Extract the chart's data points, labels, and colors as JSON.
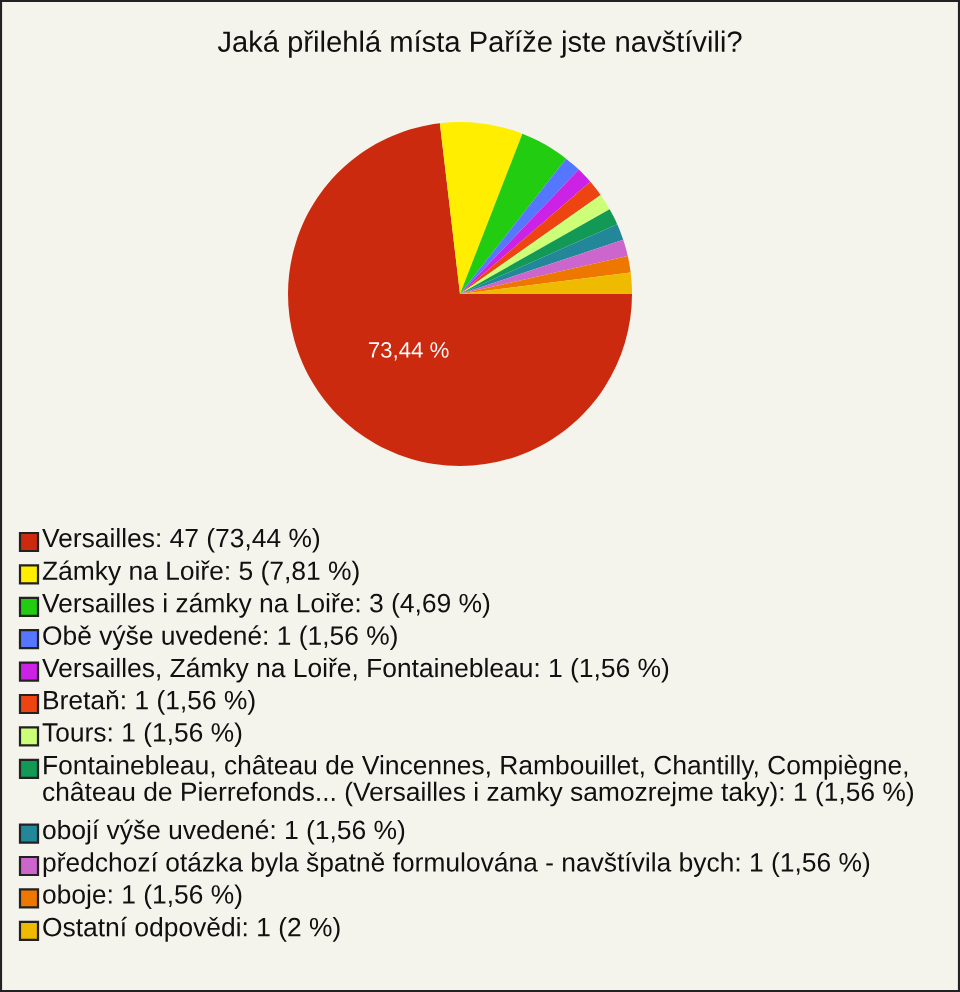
{
  "chart_data": {
    "type": "pie",
    "title": "Jaká přilehlá místa Paříže jste navštívili?",
    "categories": [
      "Versailles: 47 (73,44 %)",
      "Zámky na Loiře: 5 (7,81 %)",
      "Versailles i zámky na Loiře: 3 (4,69 %)",
      "Obě výše uvedené: 1 (1,56 %)",
      "Versailles, Zámky na Loiře, Fontainebleau: 1 (1,56 %)",
      "Bretaň: 1 (1,56 %)",
      "Tours: 1 (1,56 %)",
      "Fontainebleau, château de Vincennes, Rambouillet, Chantilly, Compiègne, château de Pierrefonds... (Versailles i zamky samozrejme taky): 1 (1,56 %)",
      "obojí výše uvedené: 1 (1,56 %)",
      "předchozí otázka byla špatně formulována - navštívila bych: 1 (1,56 %)",
      "oboje: 1 (1,56 %)",
      "Ostatní odpovědi: 1 (2 %)"
    ],
    "values": [
      73.44,
      7.81,
      4.69,
      1.56,
      1.56,
      1.56,
      1.56,
      1.56,
      1.56,
      1.56,
      1.56,
      2
    ],
    "colors": [
      "#cc2a0e",
      "#ffee00",
      "#22cc11",
      "#5577ff",
      "#cc22e6",
      "#ee4411",
      "#ccff77",
      "#119955",
      "#228899",
      "#cc66cc",
      "#ee7700",
      "#eebb00"
    ],
    "value_labels": [
      "73,44 %",
      null,
      null,
      null,
      null,
      null,
      null,
      null,
      null,
      null,
      null,
      null
    ],
    "legend": "bottom"
  }
}
